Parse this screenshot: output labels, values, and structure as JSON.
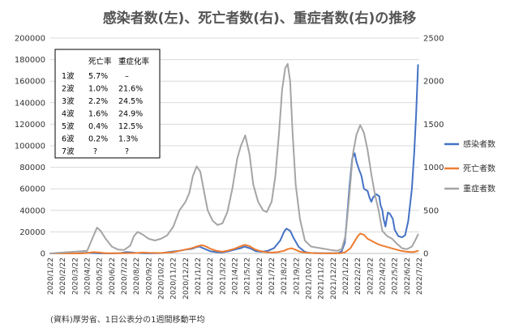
{
  "chart_data": {
    "type": "line",
    "title": "感染者数(左)、死亡者数(右)、重症者数(右)の推移",
    "y_left": {
      "min": 0,
      "max": 200000,
      "ticks": [
        "0",
        "20000",
        "40000",
        "60000",
        "80000",
        "100000",
        "120000",
        "140000",
        "160000",
        "180000",
        "200000"
      ]
    },
    "y_right": {
      "min": 0,
      "max": 2500,
      "ticks": [
        "0",
        "500",
        "1000",
        "1500",
        "2000",
        "2500"
      ]
    },
    "x_ticks": [
      "2020/1/22",
      "2020/2/22",
      "2020/3/22",
      "2020/4/22",
      "2020/5/22",
      "2020/6/22",
      "2020/7/22",
      "2020/8/22",
      "2020/9/22",
      "2020/10/22",
      "2020/11/22",
      "2020/12/22",
      "2021/1/22",
      "2021/2/22",
      "2021/3/22",
      "2021/4/22",
      "2021/5/22",
      "2021/6/22",
      "2021/7/22",
      "2021/8/22",
      "2021/9/22",
      "2021/10/22",
      "2021/11/22",
      "2021/12/22",
      "2022/1/22",
      "2022/2/22",
      "2022/3/22",
      "2022/4/22",
      "2022/5/22",
      "2022/6/22",
      "2022/7/22"
    ],
    "series": [
      {
        "name": "感染者数",
        "axis": "left",
        "color": "#4472c4",
        "points": [
          [
            0,
            0
          ],
          [
            2,
            0
          ],
          [
            2.5,
            300
          ],
          [
            3,
            700
          ],
          [
            3.3,
            400
          ],
          [
            4,
            100
          ],
          [
            5,
            0
          ],
          [
            5.7,
            300
          ],
          [
            6.2,
            1200
          ],
          [
            6.6,
            1000
          ],
          [
            7,
            400
          ],
          [
            8,
            100
          ],
          [
            9,
            300
          ],
          [
            9.8,
            1500
          ],
          [
            10.5,
            2500
          ],
          [
            11,
            3500
          ],
          [
            11.5,
            4200
          ],
          [
            11.8,
            5500
          ],
          [
            12.1,
            6500
          ],
          [
            12.6,
            4000
          ],
          [
            13,
            2000
          ],
          [
            13.5,
            1200
          ],
          [
            14,
            1000
          ],
          [
            14.5,
            2000
          ],
          [
            15,
            3500
          ],
          [
            15.5,
            5000
          ],
          [
            15.8,
            6300
          ],
          [
            16.3,
            4500
          ],
          [
            16.7,
            2000
          ],
          [
            17.2,
            1500
          ],
          [
            17.7,
            2500
          ],
          [
            18.2,
            5000
          ],
          [
            18.7,
            12000
          ],
          [
            19,
            20000
          ],
          [
            19.2,
            23000
          ],
          [
            19.5,
            21000
          ],
          [
            19.8,
            14000
          ],
          [
            20.2,
            6000
          ],
          [
            20.7,
            1500
          ],
          [
            21,
            500
          ],
          [
            22,
            150
          ],
          [
            23,
            150
          ],
          [
            23.4,
            300
          ],
          [
            23.7,
            2000
          ],
          [
            23.95,
            10000
          ],
          [
            24.1,
            30000
          ],
          [
            24.35,
            65000
          ],
          [
            24.55,
            88000
          ],
          [
            24.75,
            93000
          ],
          [
            24.9,
            85000
          ],
          [
            25.1,
            78000
          ],
          [
            25.3,
            72000
          ],
          [
            25.5,
            60000
          ],
          [
            25.8,
            58000
          ],
          [
            25.95,
            52000
          ],
          [
            26.1,
            48000
          ],
          [
            26.25,
            52000
          ],
          [
            26.5,
            55000
          ],
          [
            26.75,
            53000
          ],
          [
            26.85,
            45000
          ],
          [
            27.0,
            40000
          ],
          [
            27.1,
            32000
          ],
          [
            27.25,
            25000
          ],
          [
            27.45,
            38000
          ],
          [
            27.6,
            37000
          ],
          [
            27.85,
            32000
          ],
          [
            28.0,
            22000
          ],
          [
            28.3,
            16000
          ],
          [
            28.6,
            15000
          ],
          [
            28.85,
            17000
          ],
          [
            29.1,
            30000
          ],
          [
            29.4,
            60000
          ],
          [
            29.6,
            95000
          ],
          [
            29.75,
            130000
          ],
          [
            29.9,
            175000
          ]
        ]
      },
      {
        "name": "死亡者数",
        "axis": "right",
        "color": "#ed7d31",
        "points": [
          [
            0,
            0
          ],
          [
            2.5,
            0
          ],
          [
            3,
            5
          ],
          [
            3.5,
            15
          ],
          [
            4,
            10
          ],
          [
            4.5,
            3
          ],
          [
            5,
            2
          ],
          [
            6,
            2
          ],
          [
            7,
            5
          ],
          [
            7.5,
            10
          ],
          [
            8,
            7
          ],
          [
            9,
            5
          ],
          [
            10,
            15
          ],
          [
            10.5,
            30
          ],
          [
            11,
            45
          ],
          [
            11.5,
            60
          ],
          [
            12,
            85
          ],
          [
            12.3,
            95
          ],
          [
            12.6,
            85
          ],
          [
            13,
            55
          ],
          [
            13.5,
            30
          ],
          [
            14,
            20
          ],
          [
            14.5,
            35
          ],
          [
            15,
            55
          ],
          [
            15.5,
            85
          ],
          [
            15.8,
            100
          ],
          [
            16.2,
            85
          ],
          [
            16.6,
            50
          ],
          [
            17,
            30
          ],
          [
            17.5,
            15
          ],
          [
            18,
            10
          ],
          [
            18.5,
            15
          ],
          [
            19,
            30
          ],
          [
            19.3,
            50
          ],
          [
            19.6,
            60
          ],
          [
            19.9,
            45
          ],
          [
            20.3,
            20
          ],
          [
            20.8,
            8
          ],
          [
            21.5,
            3
          ],
          [
            23,
            1
          ],
          [
            23.6,
            2
          ],
          [
            24,
            15
          ],
          [
            24.4,
            60
          ],
          [
            24.7,
            130
          ],
          [
            25,
            200
          ],
          [
            25.2,
            230
          ],
          [
            25.5,
            215
          ],
          [
            25.8,
            170
          ],
          [
            26.2,
            140
          ],
          [
            26.6,
            110
          ],
          [
            27,
            90
          ],
          [
            27.5,
            70
          ],
          [
            28,
            50
          ],
          [
            28.5,
            30
          ],
          [
            29,
            20
          ],
          [
            29.5,
            15
          ],
          [
            29.9,
            30
          ]
        ]
      },
      {
        "name": "重症者数",
        "axis": "right",
        "color": "#a5a5a5",
        "points": [
          [
            0,
            0
          ],
          [
            3,
            30
          ],
          [
            3.5,
            200
          ],
          [
            3.8,
            300
          ],
          [
            4.1,
            260
          ],
          [
            4.5,
            170
          ],
          [
            5,
            80
          ],
          [
            5.5,
            45
          ],
          [
            6,
            40
          ],
          [
            6.5,
            90
          ],
          [
            6.8,
            200
          ],
          [
            7.1,
            250
          ],
          [
            7.5,
            220
          ],
          [
            8,
            170
          ],
          [
            8.5,
            150
          ],
          [
            9,
            170
          ],
          [
            9.5,
            210
          ],
          [
            10,
            310
          ],
          [
            10.5,
            500
          ],
          [
            11,
            600
          ],
          [
            11.3,
            700
          ],
          [
            11.6,
            900
          ],
          [
            11.9,
            1010
          ],
          [
            12.2,
            950
          ],
          [
            12.5,
            720
          ],
          [
            12.8,
            500
          ],
          [
            13.2,
            380
          ],
          [
            13.6,
            330
          ],
          [
            14,
            350
          ],
          [
            14.4,
            480
          ],
          [
            14.8,
            750
          ],
          [
            15.2,
            1100
          ],
          [
            15.5,
            1250
          ],
          [
            15.85,
            1370
          ],
          [
            16.2,
            1150
          ],
          [
            16.5,
            800
          ],
          [
            16.9,
            600
          ],
          [
            17.3,
            500
          ],
          [
            17.6,
            480
          ],
          [
            18,
            600
          ],
          [
            18.3,
            900
          ],
          [
            18.6,
            1400
          ],
          [
            18.85,
            1900
          ],
          [
            19.1,
            2150
          ],
          [
            19.3,
            2200
          ],
          [
            19.5,
            2000
          ],
          [
            19.7,
            1400
          ],
          [
            19.95,
            800
          ],
          [
            20.3,
            400
          ],
          [
            20.7,
            150
          ],
          [
            21.2,
            80
          ],
          [
            22,
            60
          ],
          [
            22.8,
            40
          ],
          [
            23.3,
            30
          ],
          [
            23.7,
            50
          ],
          [
            24,
            200
          ],
          [
            24.3,
            650
          ],
          [
            24.6,
            1150
          ],
          [
            24.9,
            1380
          ],
          [
            25.2,
            1490
          ],
          [
            25.5,
            1400
          ],
          [
            25.8,
            1200
          ],
          [
            26.1,
            920
          ],
          [
            26.4,
            680
          ],
          [
            26.7,
            500
          ],
          [
            27.0,
            260
          ],
          [
            27.4,
            200
          ],
          [
            27.8,
            170
          ],
          [
            28.2,
            110
          ],
          [
            28.6,
            60
          ],
          [
            29.0,
            50
          ],
          [
            29.4,
            80
          ],
          [
            29.7,
            160
          ],
          [
            29.9,
            220
          ]
        ]
      }
    ],
    "legend_position": "right",
    "table": {
      "headers": [
        "",
        "死亡率",
        "重症化率"
      ],
      "rows": [
        [
          "1波",
          "5.7%",
          "–"
        ],
        [
          "2波",
          "1.0%",
          "21.6%"
        ],
        [
          "3波",
          "2.2%",
          "24.5%"
        ],
        [
          "4波",
          "1.6%",
          "24.9%"
        ],
        [
          "5波",
          "0.4%",
          "12.5%"
        ],
        [
          "6波",
          "0.2%",
          "1.3%"
        ],
        [
          "7波",
          "?",
          "?"
        ]
      ]
    },
    "note": "(資料)厚労省、1日公表分の1週間移動平均",
    "grid": true
  }
}
